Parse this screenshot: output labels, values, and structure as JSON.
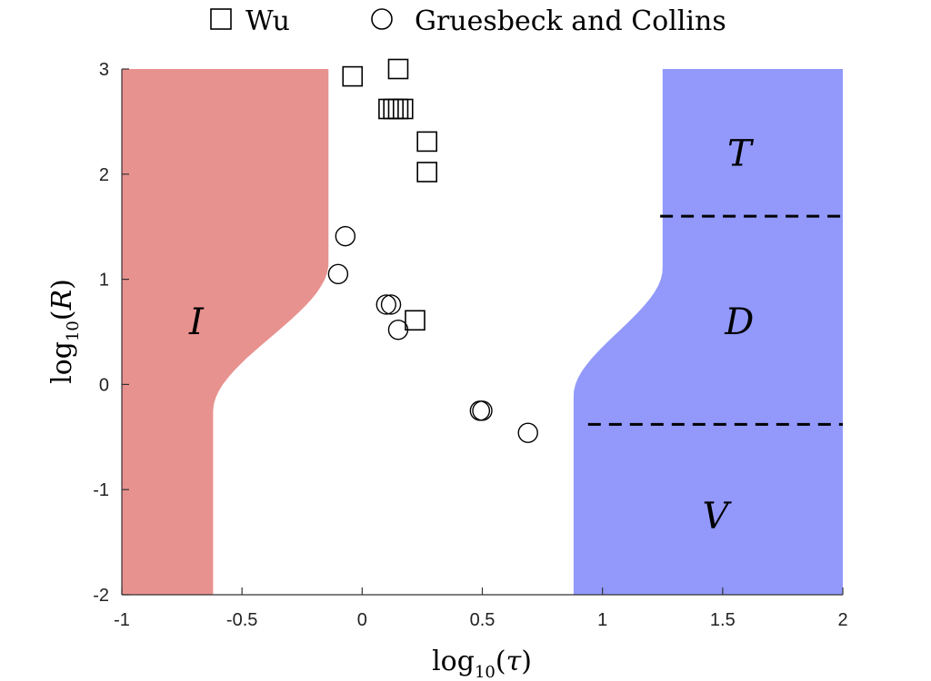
{
  "chart_data": {
    "type": "scatter",
    "xlabel": "log10(τ)",
    "ylabel": "log10(R)",
    "xlim": [
      -1,
      2
    ],
    "ylim": [
      -2,
      3
    ],
    "xticks": [
      "-1",
      "-0.5",
      "0",
      "0.5",
      "1",
      "1.5",
      "2"
    ],
    "yticks": [
      "-2",
      "-1",
      "0",
      "1",
      "2",
      "3"
    ],
    "grid": false,
    "legend_position": "top",
    "series": [
      {
        "name": "Wu",
        "marker": "square",
        "points": [
          {
            "x": -0.04,
            "y": 2.93
          },
          {
            "x": 0.15,
            "y": 3.0
          },
          {
            "x": 0.11,
            "y": 2.62
          },
          {
            "x": 0.13,
            "y": 2.62
          },
          {
            "x": 0.15,
            "y": 2.62
          },
          {
            "x": 0.17,
            "y": 2.62
          },
          {
            "x": 0.27,
            "y": 2.31
          },
          {
            "x": 0.27,
            "y": 2.02
          },
          {
            "x": 0.22,
            "y": 0.61
          }
        ]
      },
      {
        "name": "Gruesbeck and Collins",
        "marker": "circle",
        "points": [
          {
            "x": -0.07,
            "y": 1.41
          },
          {
            "x": -0.1,
            "y": 1.05
          },
          {
            "x": 0.1,
            "y": 0.76
          },
          {
            "x": 0.12,
            "y": 0.76
          },
          {
            "x": 0.15,
            "y": 0.52
          },
          {
            "x": 0.49,
            "y": -0.25
          },
          {
            "x": 0.5,
            "y": -0.25
          },
          {
            "x": 0.69,
            "y": -0.46
          }
        ]
      }
    ],
    "regions": [
      {
        "label": "I",
        "color": "#e8928f",
        "label_pos": {
          "x": -0.69,
          "y": 0.6
        },
        "boundary_top_x": -0.14,
        "boundary_bottom_x": -0.62,
        "boundary_center_y": 0.45,
        "boundary_width": 0.7
      },
      {
        "label": "blue",
        "color": "#9299fb",
        "boundary_top_x": 1.25,
        "boundary_bottom_x": 0.88,
        "boundary_center_y": 0.5,
        "boundary_width": 0.6
      }
    ],
    "region_labels": [
      {
        "label": "T",
        "x": 1.57,
        "y": 2.2
      },
      {
        "label": "D",
        "x": 1.57,
        "y": 0.6
      },
      {
        "label": "V",
        "x": 1.47,
        "y": -1.25
      }
    ],
    "dashed_lines": [
      {
        "y": 1.6,
        "x_start": 1.24,
        "x_end": 2
      },
      {
        "y": -0.38,
        "x_start": 0.94,
        "x_end": 2
      }
    ]
  }
}
